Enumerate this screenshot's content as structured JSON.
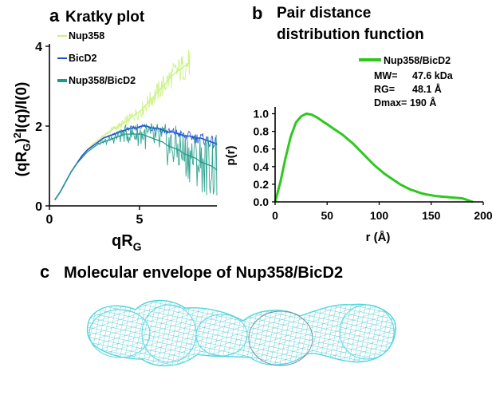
{
  "colors": {
    "nup358": "#c9f27c",
    "bicd2": "#1f4fd6",
    "complex": "#1e9a86",
    "pddf_line": "#2ec81e",
    "envelope": "#53d8e0",
    "axis": "#000000"
  },
  "panel_a": {
    "letter": "a",
    "title": "Kratky plot",
    "ylabel_parts": [
      "(qR",
      "G",
      ")",
      "2",
      "I(q)/I(0)"
    ],
    "xlabel_parts": [
      "qR",
      "G"
    ]
  },
  "panel_b": {
    "letter": "b",
    "title_line1": "Pair distance",
    "title_line2": "distribution function",
    "legend_series": "Nup358/BicD2",
    "stats": [
      {
        "label": "MW=",
        "value": "47.6 kDa"
      },
      {
        "label": "RG=",
        "value": "48.1 Å"
      },
      {
        "label": "Dmax=",
        "value": "190 Å"
      }
    ]
  },
  "panel_c": {
    "letter": "c",
    "title": "Molecular envelope of Nup358/BicD2"
  },
  "chart_data": [
    {
      "type": "line",
      "title": "Kratky plot",
      "xlabel": "qRG",
      "ylabel": "(qRG)2I(q)/I(0)",
      "xlim": [
        0,
        9.3
      ],
      "ylim": [
        0,
        4
      ],
      "xticks": [
        0,
        5
      ],
      "yticks": [
        0,
        2,
        4
      ],
      "legend_position": "upper-left",
      "grid": false,
      "series": [
        {
          "name": "Nup358",
          "color_key": "nup358",
          "x": [
            0.3,
            0.6,
            0.9,
            1.2,
            1.5,
            1.8,
            2.1,
            2.4,
            2.7,
            3.0,
            3.3,
            3.6,
            3.9,
            4.2,
            4.5,
            4.8,
            5.1,
            5.4,
            5.7,
            6.0,
            6.3,
            6.6,
            6.9,
            7.2,
            7.5,
            7.8
          ],
          "values": [
            0.15,
            0.35,
            0.6,
            0.85,
            1.05,
            1.25,
            1.4,
            1.55,
            1.65,
            1.75,
            1.85,
            1.95,
            2.0,
            2.1,
            2.2,
            2.3,
            2.4,
            2.55,
            2.7,
            2.85,
            3.0,
            3.15,
            3.3,
            3.4,
            3.5,
            3.6
          ]
        },
        {
          "name": "BicD2",
          "color_key": "bicd2",
          "x": [
            0.3,
            0.6,
            0.9,
            1.2,
            1.5,
            1.8,
            2.1,
            2.4,
            2.7,
            3.0,
            3.3,
            3.6,
            3.9,
            4.2,
            4.5,
            4.8,
            5.1,
            5.4,
            5.7,
            6.0,
            6.3,
            6.6,
            6.9,
            7.2,
            7.5,
            7.8,
            8.1,
            8.4,
            8.7,
            9.0,
            9.3
          ],
          "values": [
            0.15,
            0.35,
            0.6,
            0.85,
            1.05,
            1.25,
            1.4,
            1.5,
            1.6,
            1.7,
            1.75,
            1.8,
            1.85,
            1.9,
            1.95,
            1.95,
            2.0,
            2.0,
            1.95,
            1.95,
            1.9,
            1.85,
            1.85,
            1.8,
            1.75,
            1.75,
            1.7,
            1.7,
            1.65,
            1.6,
            1.55
          ]
        },
        {
          "name": "Nup358/BicD2",
          "color_key": "complex",
          "x": [
            0.3,
            0.6,
            0.9,
            1.2,
            1.5,
            1.8,
            2.1,
            2.4,
            2.7,
            3.0,
            3.3,
            3.6,
            3.9,
            4.2,
            4.5,
            4.8,
            5.1,
            5.4,
            5.7,
            6.0,
            6.3,
            6.6,
            6.9,
            7.2,
            7.5,
            7.8,
            8.1,
            8.4,
            8.7,
            9.0,
            9.3
          ],
          "values": [
            0.15,
            0.35,
            0.6,
            0.85,
            1.05,
            1.2,
            1.35,
            1.45,
            1.55,
            1.6,
            1.65,
            1.7,
            1.75,
            1.8,
            1.8,
            1.8,
            1.8,
            1.75,
            1.7,
            1.65,
            1.6,
            1.5,
            1.45,
            1.4,
            1.3,
            1.25,
            1.2,
            1.1,
            1.05,
            1.0,
            0.9
          ]
        }
      ]
    },
    {
      "type": "line",
      "title": "Pair distance distribution function",
      "xlabel": "r (Å)",
      "ylabel": "p(r)",
      "xlim": [
        0,
        200
      ],
      "ylim": [
        0,
        1.05
      ],
      "xticks": [
        0,
        50,
        100,
        150,
        200
      ],
      "yticks": [
        0.0,
        0.2,
        0.4,
        0.6,
        0.8,
        1.0
      ],
      "ytick_labels": [
        "0.0",
        "0.2",
        "0.4",
        "0.6",
        "0.8",
        "1.0"
      ],
      "legend_position": "top-right",
      "grid": false,
      "series": [
        {
          "name": "Nup358/BicD2",
          "color_key": "pddf_line",
          "x": [
            0,
            5,
            10,
            15,
            20,
            25,
            30,
            35,
            40,
            45,
            50,
            55,
            60,
            65,
            70,
            75,
            80,
            85,
            90,
            95,
            100,
            105,
            110,
            115,
            120,
            125,
            130,
            135,
            140,
            145,
            150,
            155,
            160,
            165,
            170,
            175,
            180,
            185,
            190
          ],
          "values": [
            0.0,
            0.22,
            0.5,
            0.74,
            0.9,
            0.97,
            1.0,
            0.99,
            0.96,
            0.92,
            0.88,
            0.84,
            0.8,
            0.76,
            0.71,
            0.66,
            0.6,
            0.54,
            0.48,
            0.42,
            0.37,
            0.32,
            0.28,
            0.24,
            0.2,
            0.17,
            0.14,
            0.12,
            0.1,
            0.085,
            0.075,
            0.065,
            0.06,
            0.055,
            0.05,
            0.045,
            0.04,
            0.02,
            0.0
          ]
        }
      ]
    }
  ]
}
